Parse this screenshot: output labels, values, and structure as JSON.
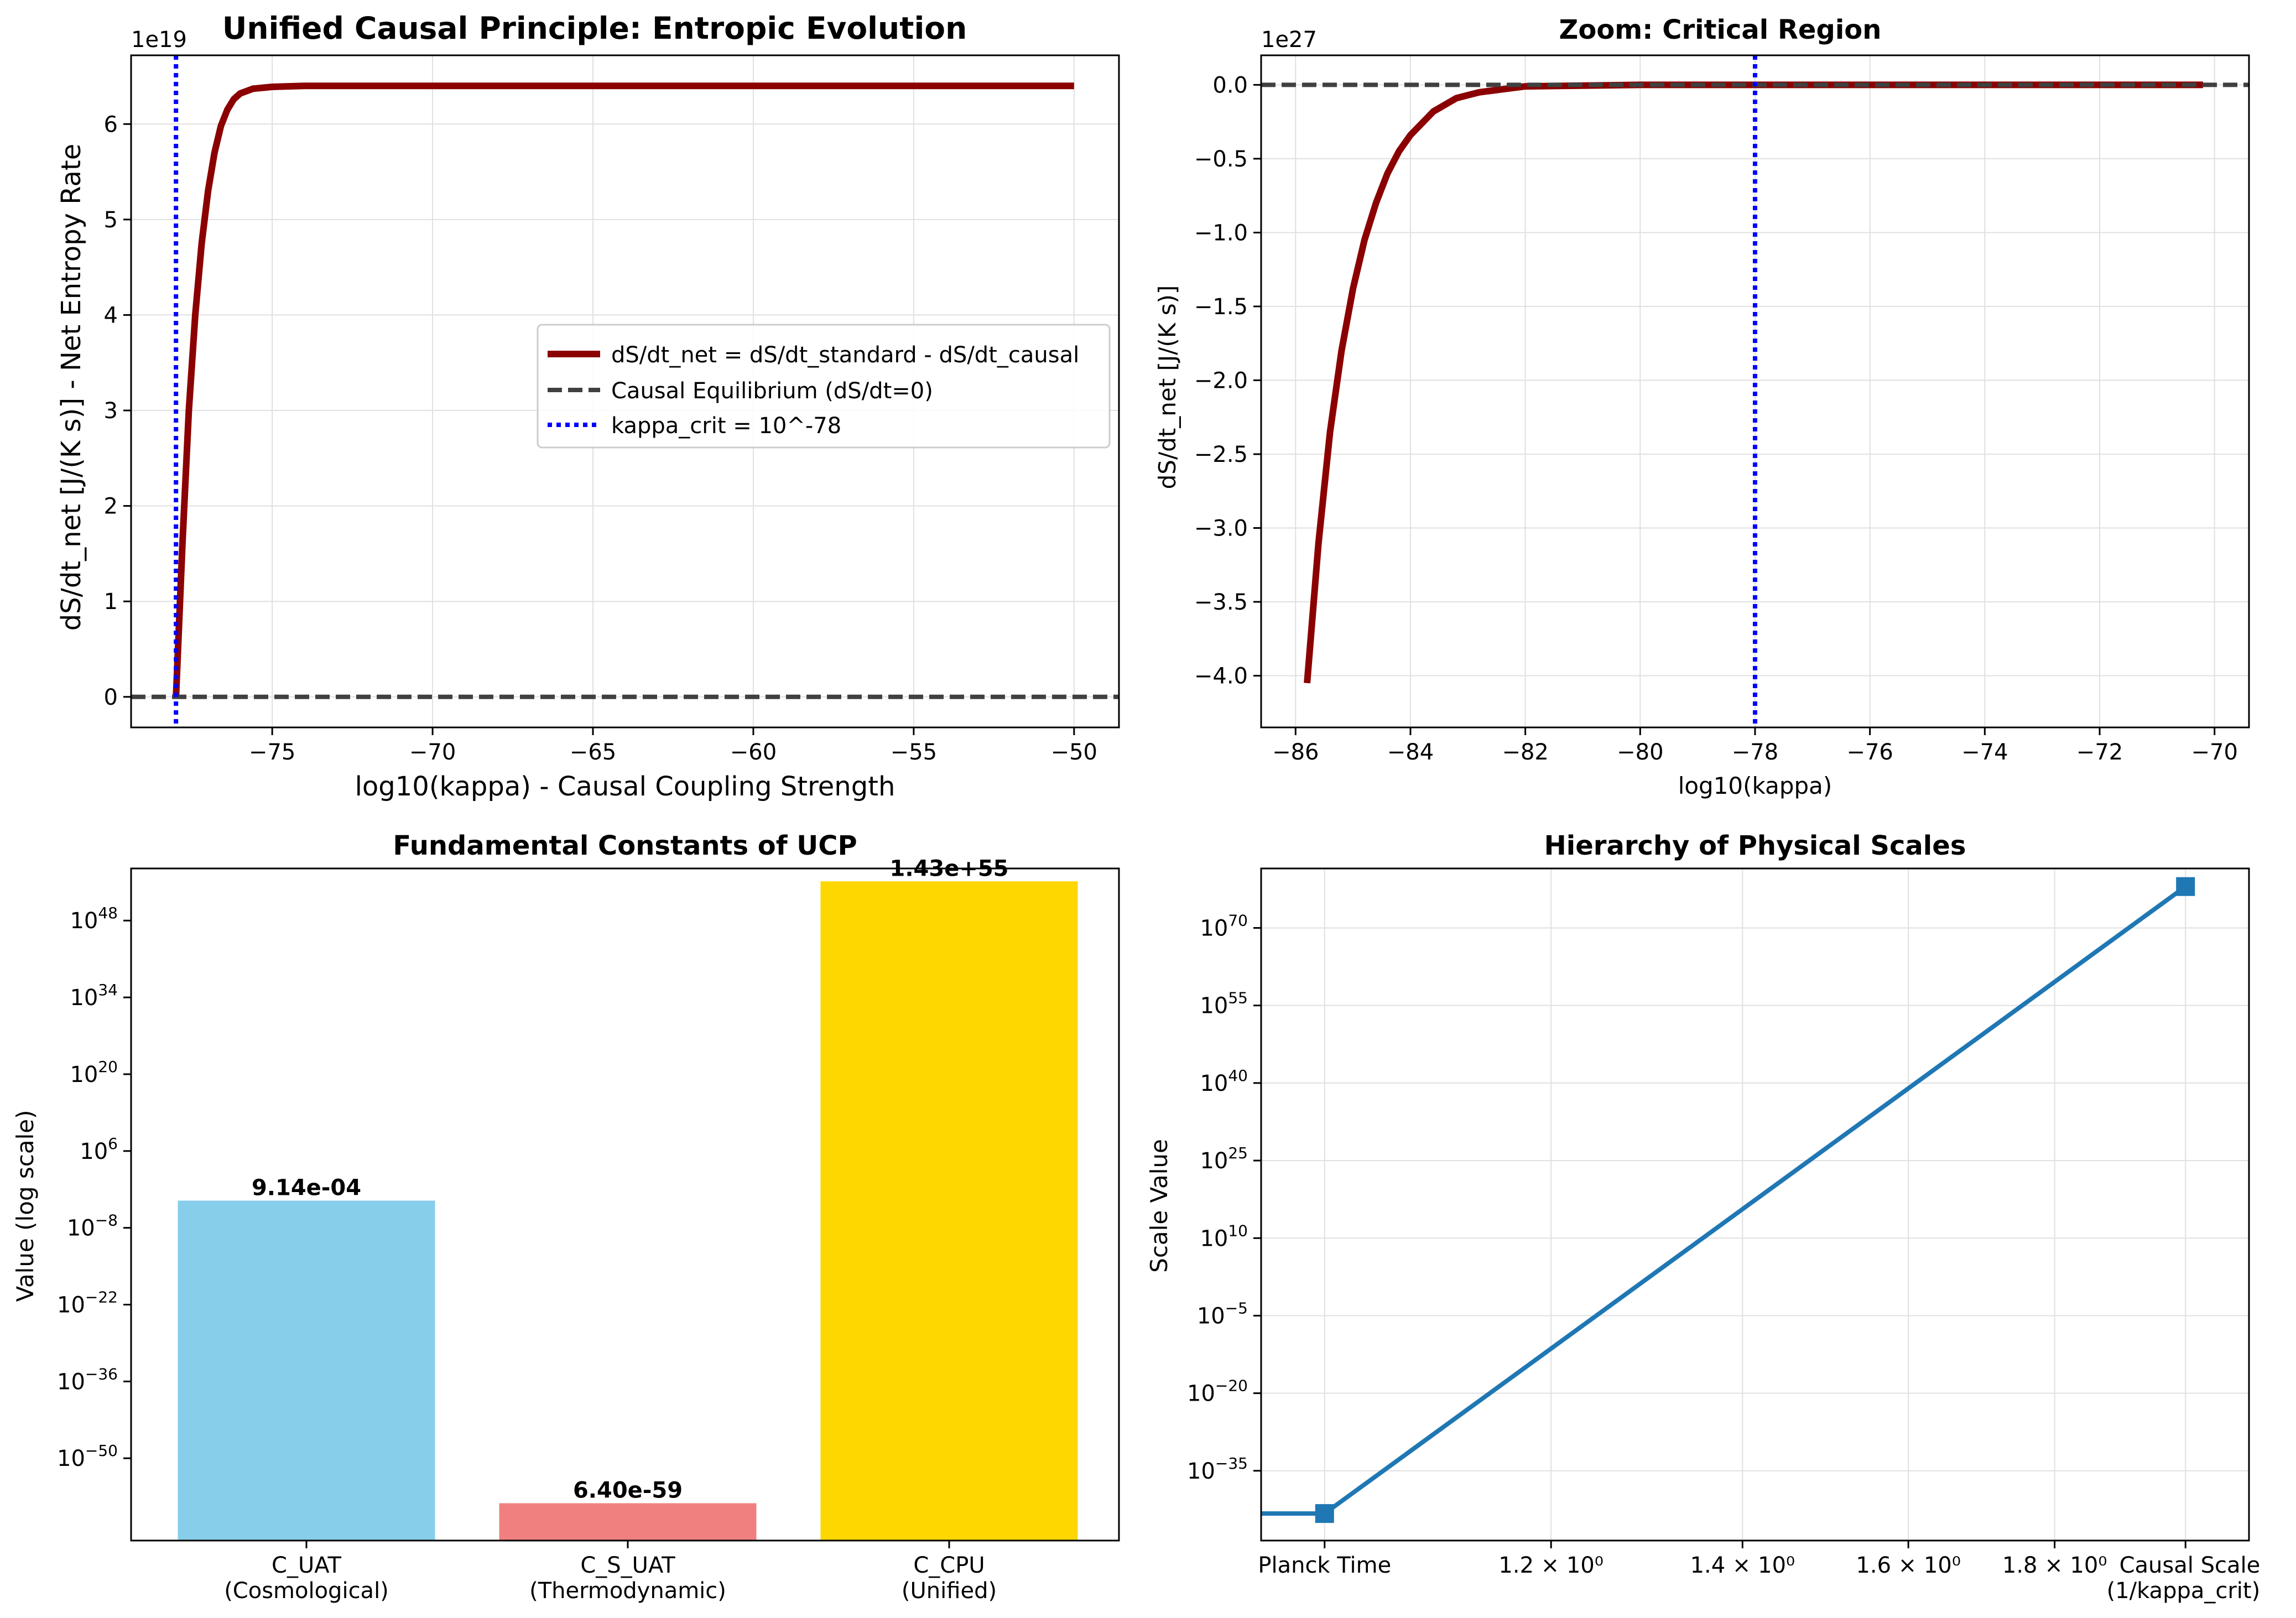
{
  "chart_data": [
    {
      "type": "line",
      "title": "Unified Causal Principle: Entropic Evolution",
      "xlabel": "log10(kappa) - Causal Coupling Strength",
      "ylabel": "dS/dt_net [J/(K s)] - Net Entropy Rate",
      "offset_text": "1e19",
      "xlim": [
        -79.4,
        -48.6
      ],
      "ylim": [
        -0.32,
        6.72
      ],
      "xticks": [
        -75,
        -70,
        -65,
        -60,
        -55,
        -50
      ],
      "xtick_labels": [
        "−75",
        "−70",
        "−65",
        "−60",
        "−55",
        "−50"
      ],
      "yticks": [
        0,
        1,
        2,
        3,
        4,
        5,
        6
      ],
      "ytick_labels": [
        "0",
        "1",
        "2",
        "3",
        "4",
        "5",
        "6"
      ],
      "grid": true,
      "legend_position": "center-right",
      "series": [
        {
          "name": "dS/dt_net = dS/dt_standard - dS/dt_causal",
          "color": "#8b0000",
          "style": "solid",
          "x": [
            -78,
            -77.8,
            -77.6,
            -77.4,
            -77.2,
            -77.0,
            -76.8,
            -76.6,
            -76.4,
            -76.2,
            -76.0,
            -75.6,
            -75.0,
            -74.0,
            -70,
            -65,
            -60,
            -55,
            -50
          ],
          "y": [
            0,
            1.6,
            3.0,
            4.0,
            4.75,
            5.3,
            5.7,
            5.98,
            6.15,
            6.26,
            6.32,
            6.37,
            6.39,
            6.4,
            6.4,
            6.4,
            6.4,
            6.4,
            6.4
          ]
        },
        {
          "name": "Causal Equilibrium (dS/dt=0)",
          "color": "#404040",
          "style": "dashed",
          "hline": 0
        },
        {
          "name": "kappa_crit = 10^-78",
          "color": "#0000ff",
          "style": "dotted",
          "vline": -78
        }
      ]
    },
    {
      "type": "line",
      "title": "Zoom: Critical Region",
      "xlabel": "log10(kappa)",
      "ylabel": "dS/dt_net [J/(K s)]",
      "offset_text": "1e27",
      "xlim": [
        -86.6,
        -69.4
      ],
      "ylim": [
        -4.35,
        0.2
      ],
      "xticks": [
        -86,
        -84,
        -82,
        -80,
        -78,
        -76,
        -74,
        -72,
        -70
      ],
      "xtick_labels": [
        "−86",
        "−84",
        "−82",
        "−80",
        "−78",
        "−76",
        "−74",
        "−72",
        "−70"
      ],
      "yticks": [
        0,
        -0.5,
        -1.0,
        -1.5,
        -2.0,
        -2.5,
        -3.0,
        -3.5,
        -4.0
      ],
      "ytick_labels": [
        "0.0",
        "−0.5",
        "−1.0",
        "−1.5",
        "−2.0",
        "−2.5",
        "−3.0",
        "−3.5",
        "−4.0"
      ],
      "grid": true,
      "series": [
        {
          "name": "",
          "color": "#8b0000",
          "style": "solid",
          "x": [
            -85.8,
            -85.6,
            -85.4,
            -85.2,
            -85.0,
            -84.8,
            -84.6,
            -84.4,
            -84.2,
            -84.0,
            -83.6,
            -83.2,
            -82.8,
            -82.0,
            -80.0,
            -75.0,
            -70.2
          ],
          "y": [
            -4.05,
            -3.1,
            -2.35,
            -1.8,
            -1.38,
            -1.05,
            -0.8,
            -0.6,
            -0.45,
            -0.34,
            -0.18,
            -0.09,
            -0.05,
            -0.01,
            0,
            0,
            0
          ]
        },
        {
          "name": "",
          "color": "#404040",
          "style": "dashed",
          "hline": 0
        },
        {
          "name": "",
          "color": "#0000ff",
          "style": "dotted",
          "vline": -78
        }
      ]
    },
    {
      "type": "bar",
      "title": "Fundamental Constants of UCP",
      "xlabel": "",
      "ylabel": "Value (log scale)",
      "yscale": "log",
      "ylim_exp": [
        -65,
        57.5
      ],
      "ytick_exps": [
        -50,
        -36,
        -22,
        -8,
        6,
        20,
        34,
        48
      ],
      "grid": false,
      "categories": [
        "C_UAT\n(Cosmological)",
        "C_S_UAT\n(Thermodynamic)",
        "C_CPU\n(Unified)"
      ],
      "values": [
        0.000914,
        6.4e-59,
        1.43e+55
      ],
      "value_labels": [
        "9.14e-04",
        "6.40e-59",
        "1.43e+55"
      ],
      "colors": [
        "#87ceeb",
        "#f08080",
        "#ffd700"
      ]
    },
    {
      "type": "line",
      "title": "Hierarchy of Physical Scales",
      "xlabel": "",
      "ylabel": "Scale Value",
      "yscale": "log",
      "xscale": "log",
      "ylim_exp": [
        -48.5,
        81.5
      ],
      "ytick_exps": [
        -35,
        -20,
        -5,
        10,
        25,
        40,
        55,
        70
      ],
      "xtick_labels": [
        "Planck Time",
        "1.2 × 10⁰",
        "1.4 × 10⁰",
        "1.6 × 10⁰",
        "1.8 × 10⁰",
        "Causal Scale\n(1/kappa_crit)"
      ],
      "grid": true,
      "series": [
        {
          "name": "",
          "color": "#1f77b4",
          "marker": "square",
          "x": [
            1,
            2
          ],
          "y": [
            5.39e-44,
            1e+78
          ],
          "y_exp": [
            -43.27,
            78
          ]
        }
      ]
    }
  ]
}
